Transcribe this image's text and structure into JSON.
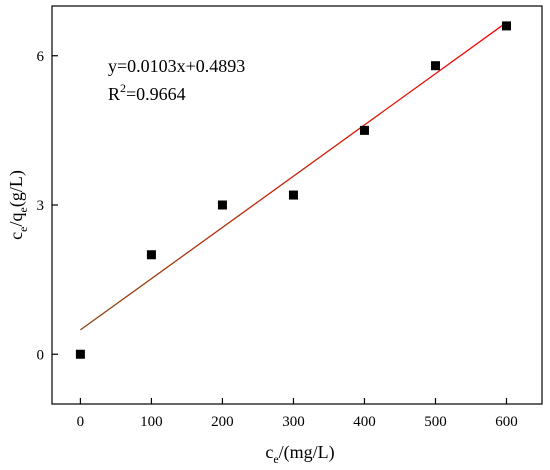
{
  "chart_data": {
    "type": "scatter",
    "x": [
      0,
      100,
      200,
      300,
      400,
      500,
      600
    ],
    "y": [
      0,
      2.0,
      3.0,
      3.2,
      4.5,
      5.8,
      6.6
    ],
    "fit_line": {
      "slope": 0.0103,
      "intercept": 0.4893
    },
    "xlim": [
      -40,
      650
    ],
    "ylim": [
      -1.0,
      7.0
    ],
    "xticks": [
      0,
      100,
      200,
      300,
      400,
      500,
      600
    ],
    "yticks": [
      0,
      3,
      6
    ],
    "xtick_labels": [
      "0",
      "100",
      "200",
      "300",
      "400",
      "500",
      "600"
    ],
    "ytick_labels": [
      "0",
      "3",
      "6"
    ],
    "xlabel": {
      "main": "c",
      "sub": "e",
      "rest": "/(mg/L)"
    },
    "ylabel": {
      "c": "c",
      "sub1": "e",
      "slash_q": "/q",
      "sub2": "e",
      "rest": "(g/L)"
    },
    "annotation": {
      "equation": "y=0.0103x+0.4893",
      "r2_prefix": "R",
      "r2_sup": "2",
      "r2_value": "=0.9664"
    },
    "grid": false,
    "colors": {
      "points": "#000000",
      "fit_line_start": "#8b4513",
      "fit_line_end": "#ff0000",
      "axes": "#000000"
    }
  }
}
